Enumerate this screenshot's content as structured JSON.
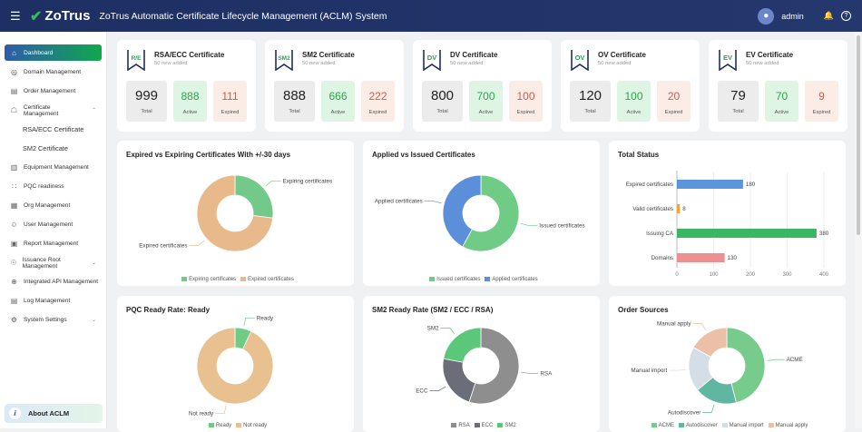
{
  "header": {
    "title": "ZoTrus Automatic Certificate Lifecycle Management (ACLM) System",
    "logo": "ZoTrus",
    "user": "admin"
  },
  "sidebar": {
    "items": [
      {
        "label": "Dashboard",
        "icon": "home-icon",
        "active": true
      },
      {
        "label": "Domain Management",
        "icon": "globe-icon"
      },
      {
        "label": "Order Management",
        "icon": "clipboard-icon"
      },
      {
        "label": "Certificate Management",
        "icon": "lock-icon",
        "expanded": true
      },
      {
        "label": "RSA/ECC Certificate",
        "sub": true
      },
      {
        "label": "SM2 Certificate",
        "sub": true
      },
      {
        "label": "Equipment Management",
        "icon": "server-icon"
      },
      {
        "label": "PQC readiness",
        "icon": "grid-icon"
      },
      {
        "label": "Org Management",
        "icon": "building-icon"
      },
      {
        "label": "User Management",
        "icon": "user-icon"
      },
      {
        "label": "Report Management",
        "icon": "report-icon"
      },
      {
        "label": "Issuance Root Management",
        "icon": "root-icon",
        "chevron": true
      },
      {
        "label": "Integrated API Management",
        "icon": "api-icon"
      },
      {
        "label": "Log Management",
        "icon": "log-icon"
      },
      {
        "label": "System Settings",
        "icon": "gear-icon",
        "chevron": true
      }
    ],
    "about": "About ACLM"
  },
  "cards": [
    {
      "badge": "R/E",
      "title": "RSA/ECC Certificate",
      "sub": "50 new added",
      "total": "999",
      "active": "888",
      "expired": "111"
    },
    {
      "badge": "SM2",
      "title": "SM2 Certificate",
      "sub": "50 new added",
      "total": "888",
      "active": "666",
      "expired": "222"
    },
    {
      "badge": "DV",
      "title": "DV Certificate",
      "sub": "50 new added",
      "total": "800",
      "active": "700",
      "expired": "100"
    },
    {
      "badge": "OV",
      "title": "OV Certificate",
      "sub": "50 new added",
      "total": "120",
      "active": "100",
      "expired": "20"
    },
    {
      "badge": "EV",
      "title": "EV Certificate",
      "sub": "50 new added",
      "total": "79",
      "active": "70",
      "expired": "9"
    }
  ],
  "labels": {
    "total": "Total",
    "active": "Active",
    "expired": "Expired"
  },
  "chart_data": [
    {
      "type": "pie",
      "title": "Expired vs Expiring Certificates With +/-30 days",
      "series": [
        {
          "name": "Expiring certificates",
          "value": 27,
          "color": "#73c98a"
        },
        {
          "name": "Expired certificates",
          "value": 73,
          "color": "#e8b98a"
        }
      ]
    },
    {
      "type": "pie",
      "title": "Applied vs Issued Certificates",
      "series": [
        {
          "name": "Issued certificates",
          "value": 58,
          "color": "#6fcb86"
        },
        {
          "name": "Applied certificates",
          "value": 42,
          "color": "#5b8fd9"
        }
      ]
    },
    {
      "type": "bar",
      "title": "Total Status",
      "categories": [
        "Expired certificates",
        "Valid certificates",
        "Issuing CA",
        "Domains"
      ],
      "values": [
        180,
        8,
        380,
        130
      ],
      "colors": [
        "#5b95dc",
        "#f0a43a",
        "#3bb665",
        "#ee9090"
      ],
      "xlim": [
        0,
        400
      ],
      "xticks": [
        "0",
        "100",
        "200",
        "300",
        "400"
      ],
      "grid": true
    },
    {
      "type": "pie",
      "title": "PQC Ready Rate: Ready",
      "series": [
        {
          "name": "Ready",
          "value": 7,
          "color": "#6fcb86"
        },
        {
          "name": "Not ready",
          "value": 93,
          "color": "#e9c08f"
        }
      ]
    },
    {
      "type": "pie",
      "title": "SM2 Ready Rate (SM2 / ECC / RSA)",
      "series": [
        {
          "name": "RSA",
          "value": 55,
          "color": "#8e8e8e"
        },
        {
          "name": "ECC",
          "value": 23,
          "color": "#6b6e78"
        },
        {
          "name": "SM2",
          "value": 22,
          "color": "#5ac77b"
        }
      ]
    },
    {
      "type": "pie",
      "title": "Order Sources",
      "series": [
        {
          "name": "ACME",
          "value": 46,
          "color": "#76cb8d"
        },
        {
          "name": "Autodiscover",
          "value": 18,
          "color": "#5fb6a1"
        },
        {
          "name": "Manual import",
          "value": 19,
          "color": "#d3dee6"
        },
        {
          "name": "Manual apply",
          "value": 17,
          "color": "#ebbfa8"
        }
      ]
    }
  ]
}
